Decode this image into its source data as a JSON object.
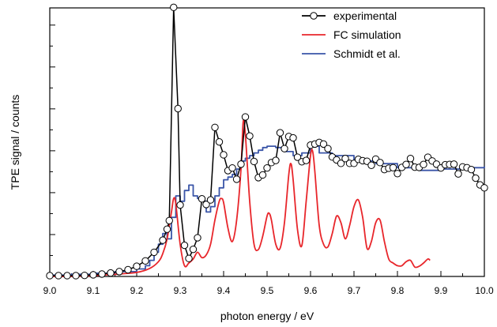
{
  "chart_data": {
    "type": "line",
    "title": "",
    "xlabel": "photon energy / eV",
    "ylabel": "TPE signal / counts",
    "xlim": [
      9.0,
      10.0
    ],
    "ylim": [
      0,
      100
    ],
    "x_ticks": [
      "9.0",
      "9.1",
      "9.2",
      "9.3",
      "9.4",
      "9.5",
      "9.6",
      "9.7",
      "9.8",
      "9.9",
      "10.0"
    ],
    "y_ticks_labeled": false,
    "grid": false,
    "legend_position": "top-right",
    "series": [
      {
        "name": "experimental",
        "color": "#000000",
        "marker": "open-circle",
        "x": [
          9.0,
          9.02,
          9.04,
          9.06,
          9.08,
          9.1,
          9.12,
          9.14,
          9.16,
          9.18,
          9.2,
          9.22,
          9.24,
          9.26,
          9.27,
          9.275,
          9.285,
          9.295,
          9.3,
          9.31,
          9.32,
          9.33,
          9.34,
          9.35,
          9.36,
          9.37,
          9.38,
          9.39,
          9.4,
          9.41,
          9.42,
          9.43,
          9.44,
          9.45,
          9.46,
          9.47,
          9.48,
          9.49,
          9.5,
          9.51,
          9.52,
          9.53,
          9.54,
          9.55,
          9.56,
          9.57,
          9.58,
          9.59,
          9.6,
          9.61,
          9.62,
          9.63,
          9.64,
          9.65,
          9.66,
          9.67,
          9.68,
          9.69,
          9.7,
          9.71,
          9.72,
          9.73,
          9.74,
          9.75,
          9.76,
          9.77,
          9.78,
          9.79,
          9.8,
          9.81,
          9.82,
          9.83,
          9.84,
          9.85,
          9.86,
          9.87,
          9.88,
          9.89,
          9.9,
          9.91,
          9.92,
          9.93,
          9.94,
          9.95,
          9.96,
          9.97,
          9.98,
          9.99,
          10.0
        ],
        "y": [
          0.3,
          0.3,
          0.3,
          0.3,
          0.4,
          0.6,
          0.9,
          1.3,
          1.8,
          2.5,
          3.8,
          5.8,
          9.0,
          13.5,
          17.6,
          20.8,
          100.2,
          62.5,
          26.6,
          11.6,
          6.7,
          10.1,
          14.4,
          28.9,
          26.8,
          28.5,
          55.5,
          50.1,
          45.3,
          39.4,
          40.4,
          36.2,
          41.8,
          59.4,
          52.3,
          42.8,
          36.8,
          37.8,
          40.4,
          42.4,
          43.2,
          53.5,
          47.6,
          52.1,
          51.6,
          44.4,
          42.7,
          43.2,
          48.9,
          49.3,
          49.9,
          49.3,
          47.6,
          44.5,
          43.4,
          42.1,
          43.9,
          42.1,
          42.1,
          43.6,
          43.1,
          42.9,
          41.4,
          43.7,
          42.4,
          39.8,
          40.3,
          40.5,
          38.3,
          40.6,
          41.7,
          43.9,
          40.7,
          40.6,
          41.7,
          44.4,
          43.0,
          41.8,
          40.4,
          41.6,
          41.7,
          41.8,
          38.2,
          40.8,
          40.5,
          39.8,
          36.6,
          34.1,
          33.0
        ]
      },
      {
        "name": "FC simulation",
        "color": "#e8262b",
        "x": [
          9.0,
          9.05,
          9.1,
          9.15,
          9.2,
          9.23,
          9.25,
          9.26,
          9.27,
          9.28,
          9.285,
          9.29,
          9.3,
          9.31,
          9.32,
          9.33,
          9.34,
          9.35,
          9.36,
          9.37,
          9.38,
          9.39,
          9.395,
          9.4,
          9.41,
          9.42,
          9.43,
          9.44,
          9.445,
          9.45,
          9.46,
          9.47,
          9.48,
          9.49,
          9.5,
          9.505,
          9.51,
          9.52,
          9.53,
          9.54,
          9.55,
          9.555,
          9.56,
          9.57,
          9.58,
          9.59,
          9.6,
          9.605,
          9.61,
          9.62,
          9.63,
          9.64,
          9.65,
          9.66,
          9.67,
          9.68,
          9.69,
          9.7,
          9.71,
          9.72,
          9.73,
          9.74,
          9.75,
          9.76,
          9.77,
          9.78,
          9.79,
          9.8,
          9.81,
          9.82,
          9.83,
          9.84,
          9.85,
          9.86,
          9.87,
          9.875
        ],
        "y": [
          0.0,
          0.0,
          0.3,
          0.8,
          1.5,
          3.0,
          5.5,
          8.5,
          14.0,
          24.0,
          29.0,
          27.0,
          12.0,
          4.0,
          5.0,
          6.5,
          9.0,
          7.0,
          8.0,
          12.0,
          21.0,
          28.0,
          29.0,
          27.5,
          18.0,
          13.0,
          21.0,
          40.0,
          57.5,
          53.0,
          28.0,
          12.0,
          10.0,
          15.0,
          22.5,
          23.5,
          21.0,
          12.0,
          10.5,
          20.0,
          38.0,
          42.0,
          36.0,
          17.5,
          11.5,
          28.0,
          45.0,
          46.5,
          39.0,
          19.0,
          12.0,
          11.0,
          16.0,
          22.5,
          20.0,
          14.0,
          19.0,
          26.0,
          28.5,
          22.0,
          10.5,
          13.0,
          20.0,
          21.0,
          13.0,
          6.5,
          5.0,
          4.0,
          4.0,
          5.5,
          6.0,
          3.5,
          3.8,
          5.0,
          6.5,
          6.0
        ]
      },
      {
        "name": "Schmidt et al.",
        "color": "#3a55a8",
        "x": [
          9.0,
          9.05,
          9.1,
          9.15,
          9.2,
          9.22,
          9.23,
          9.24,
          9.25,
          9.26,
          9.27,
          9.28,
          9.29,
          9.3,
          9.31,
          9.32,
          9.33,
          9.34,
          9.35,
          9.36,
          9.37,
          9.38,
          9.39,
          9.4,
          9.41,
          9.42,
          9.43,
          9.44,
          9.45,
          9.46,
          9.47,
          9.48,
          9.49,
          9.5,
          9.52,
          9.54,
          9.56,
          9.58,
          9.6,
          9.62,
          9.65,
          9.7,
          9.75,
          9.8,
          9.85,
          9.9,
          9.95,
          10.0
        ],
        "y": [
          0.5,
          0.8,
          1.2,
          1.8,
          2.8,
          4.0,
          6.0,
          9.0,
          12.0,
          16.0,
          14.0,
          22.0,
          30.0,
          28.0,
          32.0,
          34.0,
          30.0,
          29.0,
          28.0,
          24.0,
          26.0,
          30.0,
          33.0,
          36.0,
          37.0,
          38.0,
          40.0,
          43.0,
          44.0,
          45.0,
          46.0,
          47.0,
          48.0,
          48.5,
          48.0,
          46.5,
          45.0,
          46.0,
          48.5,
          46.0,
          45.0,
          43.0,
          42.0,
          40.5,
          39.5,
          40.0,
          40.5,
          41.0
        ]
      }
    ]
  }
}
